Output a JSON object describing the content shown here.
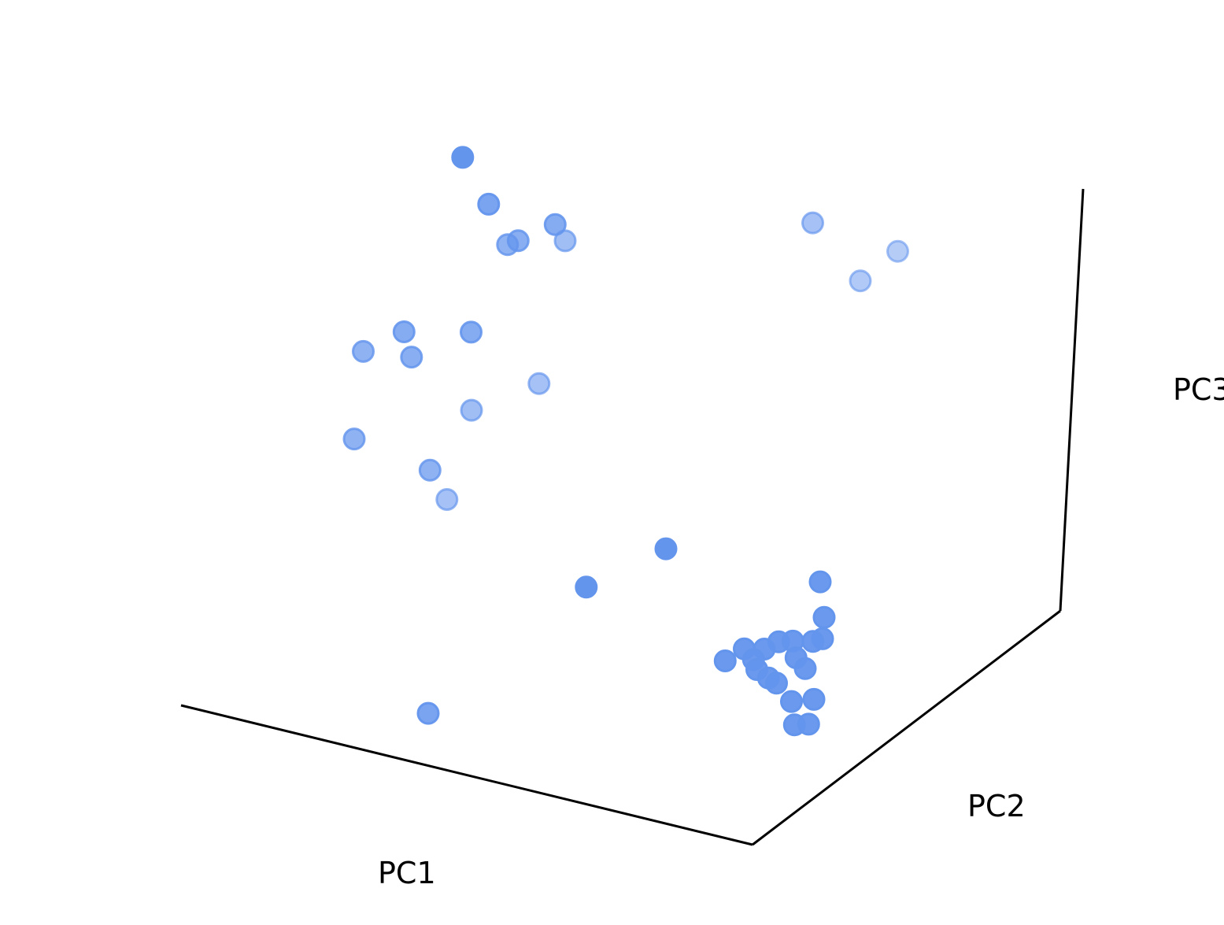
{
  "chart_data": {
    "type": "scatter",
    "projection": "3d",
    "xlabel": "PC1",
    "ylabel": "PC2",
    "zlabel": "PC3",
    "grid": false,
    "marker_color": "#6495ED",
    "points": [
      {
        "x": 0.34,
        "y": 0.54,
        "z": 0.83,
        "depth": 0.0
      },
      {
        "x": 0.39,
        "y": 0.53,
        "z": 0.77,
        "depth": 0.2
      },
      {
        "x": 0.48,
        "y": 0.59,
        "z": 0.73,
        "depth": 0.3
      },
      {
        "x": 0.43,
        "y": 0.56,
        "z": 0.71,
        "depth": 0.35
      },
      {
        "x": 0.42,
        "y": 0.54,
        "z": 0.71,
        "depth": 0.4
      },
      {
        "x": 0.49,
        "y": 0.61,
        "z": 0.7,
        "depth": 0.55
      },
      {
        "x": 0.81,
        "y": 0.86,
        "z": 0.68,
        "depth": 0.6
      },
      {
        "x": 0.92,
        "y": 0.95,
        "z": 0.62,
        "depth": 0.75
      },
      {
        "x": 0.87,
        "y": 0.92,
        "z": 0.58,
        "depth": 0.7
      },
      {
        "x": 0.3,
        "y": 0.41,
        "z": 0.61,
        "depth": 0.3
      },
      {
        "x": 0.24,
        "y": 0.39,
        "z": 0.58,
        "depth": 0.4
      },
      {
        "x": 0.31,
        "y": 0.42,
        "z": 0.57,
        "depth": 0.35
      },
      {
        "x": 0.39,
        "y": 0.47,
        "z": 0.6,
        "depth": 0.3
      },
      {
        "x": 0.48,
        "y": 0.54,
        "z": 0.51,
        "depth": 0.6
      },
      {
        "x": 0.26,
        "y": 0.31,
        "z": 0.48,
        "depth": 0.4
      },
      {
        "x": 0.41,
        "y": 0.43,
        "z": 0.5,
        "depth": 0.55
      },
      {
        "x": 0.37,
        "y": 0.36,
        "z": 0.43,
        "depth": 0.4
      },
      {
        "x": 0.4,
        "y": 0.36,
        "z": 0.39,
        "depth": 0.6
      },
      {
        "x": 0.71,
        "y": 0.52,
        "z": 0.3,
        "depth": 0.0
      },
      {
        "x": 0.62,
        "y": 0.41,
        "z": 0.27,
        "depth": 0.0
      },
      {
        "x": 0.91,
        "y": 0.68,
        "z": 0.22,
        "depth": 0.05
      },
      {
        "x": 0.93,
        "y": 0.65,
        "z": 0.18,
        "depth": 0.05
      },
      {
        "x": 0.94,
        "y": 0.62,
        "z": 0.16,
        "depth": 0.05
      },
      {
        "x": 0.92,
        "y": 0.63,
        "z": 0.15,
        "depth": 0.05
      },
      {
        "x": 0.87,
        "y": 0.61,
        "z": 0.15,
        "depth": 0.05
      },
      {
        "x": 0.89,
        "y": 0.62,
        "z": 0.15,
        "depth": 0.05
      },
      {
        "x": 0.85,
        "y": 0.6,
        "z": 0.14,
        "depth": 0.05
      },
      {
        "x": 0.82,
        "y": 0.59,
        "z": 0.14,
        "depth": 0.05
      },
      {
        "x": 0.84,
        "y": 0.58,
        "z": 0.13,
        "depth": 0.05
      },
      {
        "x": 0.9,
        "y": 0.61,
        "z": 0.13,
        "depth": 0.05
      },
      {
        "x": 0.92,
        "y": 0.6,
        "z": 0.12,
        "depth": 0.05
      },
      {
        "x": 0.85,
        "y": 0.57,
        "z": 0.12,
        "depth": 0.05
      },
      {
        "x": 0.87,
        "y": 0.57,
        "z": 0.11,
        "depth": 0.05
      },
      {
        "x": 0.8,
        "y": 0.56,
        "z": 0.13,
        "depth": 0.05
      },
      {
        "x": 0.88,
        "y": 0.58,
        "z": 0.1,
        "depth": 0.05
      },
      {
        "x": 0.94,
        "y": 0.59,
        "z": 0.08,
        "depth": 0.05
      },
      {
        "x": 0.91,
        "y": 0.57,
        "z": 0.08,
        "depth": 0.05
      },
      {
        "x": 0.92,
        "y": 0.56,
        "z": 0.05,
        "depth": 0.05
      },
      {
        "x": 0.94,
        "y": 0.57,
        "z": 0.05,
        "depth": 0.05
      },
      {
        "x": 0.41,
        "y": 0.28,
        "z": 0.1,
        "depth": 0.2
      }
    ]
  }
}
